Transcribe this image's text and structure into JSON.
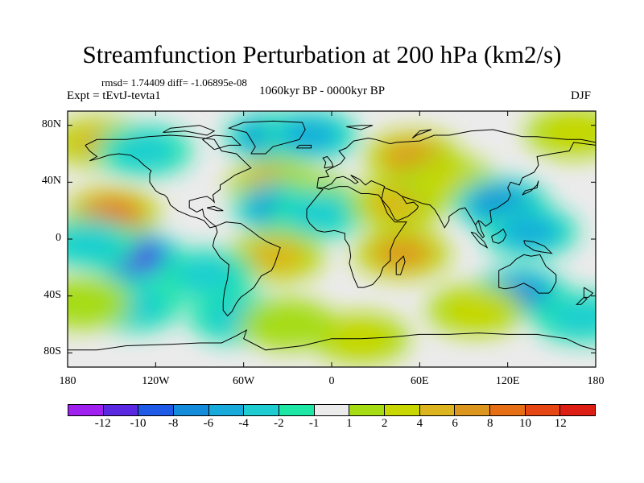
{
  "title": "Streamfunction Perturbation at 200 hPa (km2/s)",
  "stats": "rmsd= 1.74409  diff= -1.06895e-08",
  "experiment": "Expt = tEvtJ-tevta1",
  "period": "1060kyr BP - 0000kyr BP",
  "season": "DJF",
  "map": {
    "projection": "cylindrical-equidistant",
    "lat_labels": [
      "80N",
      "40N",
      "0",
      "40S",
      "80S"
    ],
    "lon_labels": [
      "180",
      "120W",
      "60W",
      "0",
      "60E",
      "120E",
      "180"
    ],
    "lat_values": [
      80,
      40,
      0,
      -40,
      -80
    ],
    "lon_values": [
      -180,
      -120,
      -60,
      0,
      60,
      120,
      180
    ],
    "lat_range": [
      -90,
      90
    ],
    "lon_range": [
      -180,
      180
    ],
    "background_color": "#ebebeb",
    "coastline_color": "#000000",
    "anomalies": [
      {
        "lon": -150,
        "lat": 18,
        "level": 5
      },
      {
        "lon": -135,
        "lat": -12,
        "level": -6
      },
      {
        "lon": -165,
        "lat": -3,
        "level": -2
      },
      {
        "lon": -158,
        "lat": 68,
        "level": 3
      },
      {
        "lon": -128,
        "lat": 62,
        "level": -2
      },
      {
        "lon": -40,
        "lat": 72,
        "level": -4
      },
      {
        "lon": -15,
        "lat": 73,
        "level": -3
      },
      {
        "lon": -38,
        "lat": 38,
        "level": 4
      },
      {
        "lon": -18,
        "lat": 30,
        "level": 2
      },
      {
        "lon": -35,
        "lat": 22,
        "level": -4
      },
      {
        "lon": -10,
        "lat": 18,
        "level": -2
      },
      {
        "lon": -38,
        "lat": -12,
        "level": 3
      },
      {
        "lon": -85,
        "lat": -25,
        "level": -2
      },
      {
        "lon": -135,
        "lat": -47,
        "level": -2
      },
      {
        "lon": -65,
        "lat": -55,
        "level": -2
      },
      {
        "lon": -30,
        "lat": -60,
        "level": 1
      },
      {
        "lon": 55,
        "lat": 58,
        "level": 4
      },
      {
        "lon": 45,
        "lat": 25,
        "level": 3
      },
      {
        "lon": 48,
        "lat": -10,
        "level": 4
      },
      {
        "lon": 80,
        "lat": 40,
        "level": 2
      },
      {
        "lon": 115,
        "lat": 25,
        "level": -4
      },
      {
        "lon": 135,
        "lat": 5,
        "level": -3
      },
      {
        "lon": 128,
        "lat": -38,
        "level": -4
      },
      {
        "lon": 165,
        "lat": 75,
        "level": 2
      },
      {
        "lon": 170,
        "lat": -55,
        "level": -2
      },
      {
        "lon": 98,
        "lat": -50,
        "level": 2
      },
      {
        "lon": 20,
        "lat": -70,
        "level": 2
      },
      {
        "lon": -170,
        "lat": -45,
        "level": 1
      }
    ]
  },
  "colorbar": {
    "labels": [
      "-12",
      "-10",
      "-8",
      "-6",
      "-4",
      "-2",
      "-1",
      "1",
      "2",
      "4",
      "6",
      "8",
      "10",
      "12"
    ],
    "colors": [
      "#a020f0",
      "#5a28e0",
      "#1e5ae6",
      "#148cdc",
      "#19aadc",
      "#1ecdd2",
      "#1ee6a5",
      "#ebebeb",
      "#a5dc14",
      "#c8d700",
      "#dcb41e",
      "#dc961e",
      "#e66e14",
      "#e64614",
      "#dc1e14"
    ]
  }
}
